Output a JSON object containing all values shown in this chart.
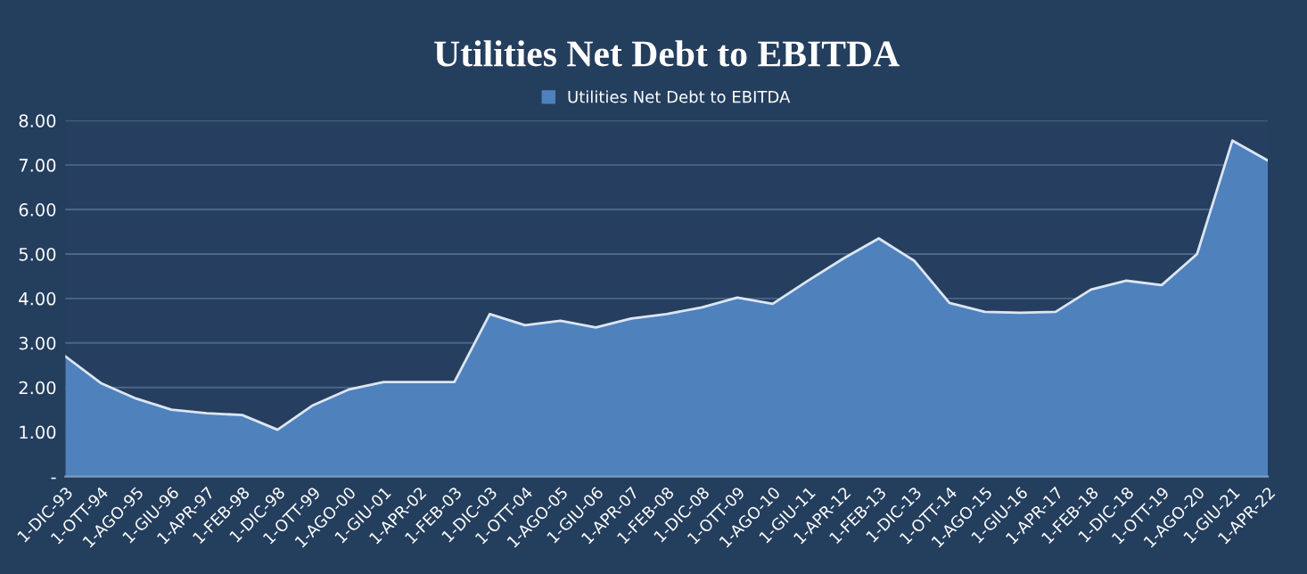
{
  "chart_data": {
    "type": "area",
    "title": "Utilities Net Debt to EBITDA",
    "categories": [
      "1-DIC-93",
      "1-OTT-94",
      "1-AGO-95",
      "1-GIU-96",
      "1-APR-97",
      "1-FEB-98",
      "1-DIC-98",
      "1-OTT-99",
      "1-AGO-00",
      "1-GIU-01",
      "1-APR-02",
      "1-FEB-03",
      "1-DIC-03",
      "1-OTT-04",
      "1-AGO-05",
      "1-GIU-06",
      "1-APR-07",
      "1-FEB-08",
      "1-DIC-08",
      "1-OTT-09",
      "1-AGO-10",
      "1-GIU-11",
      "1-APR-12",
      "1-FEB-13",
      "1-DIC-13",
      "1-OTT-14",
      "1-AGO-15",
      "1-GIU-16",
      "1-APR-17",
      "1-FEB-18",
      "1-DIC-18",
      "1-OTT-19",
      "1-AGO-20",
      "1-GIU-21",
      "1-APR-22"
    ],
    "series": [
      {
        "name": "Utilities Net Debt to EBITDA",
        "color": "#4f81bd",
        "values": [
          2.7,
          2.1,
          1.75,
          1.5,
          1.42,
          1.38,
          1.05,
          1.6,
          1.95,
          2.12,
          2.12,
          2.12,
          3.65,
          3.4,
          3.5,
          3.35,
          3.55,
          3.65,
          3.8,
          4.02,
          3.88,
          4.4,
          4.9,
          5.35,
          4.85,
          3.9,
          3.7,
          3.68,
          3.7,
          4.2,
          4.4,
          4.3,
          5.0,
          7.55,
          7.1
        ]
      }
    ],
    "ylim": [
      0,
      8
    ],
    "yticks": [
      {
        "value": 0,
        "label": "-"
      },
      {
        "value": 1,
        "label": "1.00"
      },
      {
        "value": 2,
        "label": "2.00"
      },
      {
        "value": 3,
        "label": "3.00"
      },
      {
        "value": 4,
        "label": "4.00"
      },
      {
        "value": 5,
        "label": "5.00"
      },
      {
        "value": 6,
        "label": "6.00"
      },
      {
        "value": 7,
        "label": "7.00"
      },
      {
        "value": 8,
        "label": "8.00"
      }
    ],
    "grid": "y",
    "legend": "top"
  }
}
